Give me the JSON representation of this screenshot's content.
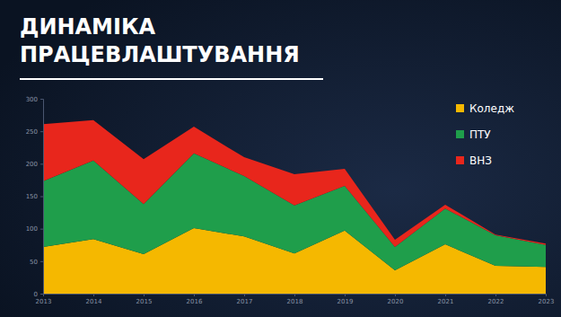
{
  "chart_data": {
    "type": "area",
    "title": "ДИНАМІКА ПРАЦЕВЛАШТУВАННЯ",
    "categories": [
      "2013",
      "2014",
      "2015",
      "2016",
      "2017",
      "2018",
      "2019",
      "2020",
      "2021",
      "2022",
      "2023"
    ],
    "series": [
      {
        "name": "Коледж",
        "color": "#f5b800",
        "values": [
          72,
          84,
          61,
          101,
          88,
          62,
          97,
          36,
          76,
          43,
          41
        ]
      },
      {
        "name": "ПТУ",
        "color": "#1f9e4b",
        "values": [
          101,
          121,
          77,
          115,
          93,
          74,
          69,
          36,
          55,
          47,
          34
        ]
      },
      {
        "name": "ВНЗ",
        "color": "#e8261c",
        "values": [
          88,
          62,
          69,
          41,
          29,
          48,
          26,
          11,
          6,
          1,
          2
        ]
      }
    ],
    "ylim": [
      0,
      300
    ],
    "yticks": [
      0,
      50,
      100,
      150,
      200,
      250,
      300
    ],
    "stacked": true,
    "grid": false,
    "legend": "upper right"
  }
}
